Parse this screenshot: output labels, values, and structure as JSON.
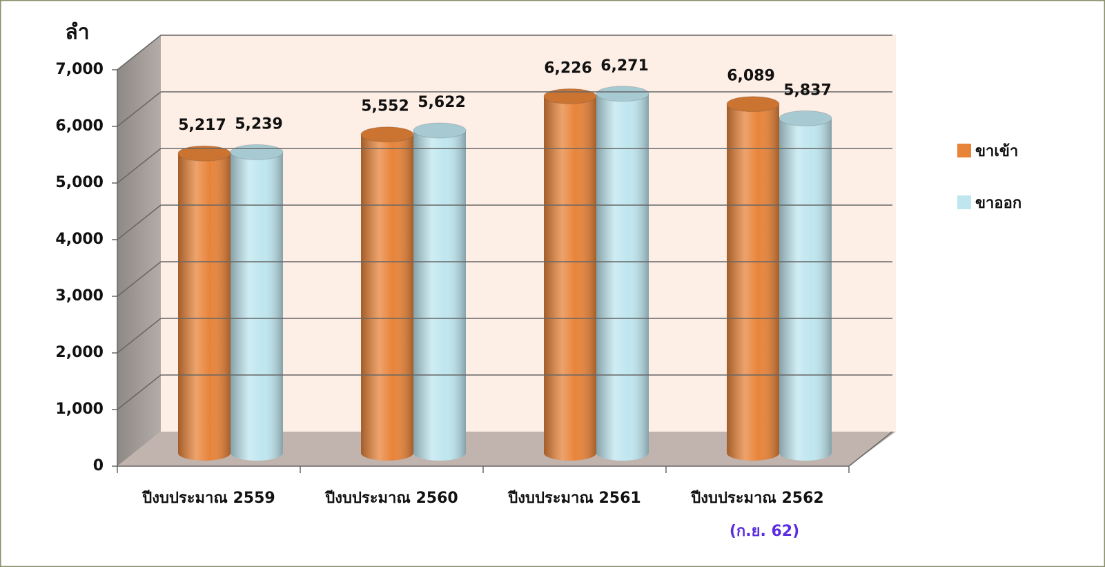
{
  "chart_data": {
    "type": "bar3d",
    "y_label": "ลำ",
    "categories": [
      "ปีงบประมาณ 2559",
      "ปีงบประมาณ 2560",
      "ปีงบประมาณ 2561",
      "ปีงบประมาณ 2562"
    ],
    "annotation": "(ก.ย. 62)",
    "series": [
      {
        "name": "ขาเข้า",
        "color": "#e8843a",
        "values": [
          5217,
          5552,
          6226,
          6089
        ],
        "value_labels": [
          "5,217",
          "5,552",
          "6,226",
          "6,089"
        ]
      },
      {
        "name": "ขาออก",
        "color": "#bfe6ef",
        "values": [
          5239,
          5622,
          6271,
          5837
        ],
        "value_labels": [
          "5,239",
          "5,622",
          "6,271",
          "5,837"
        ]
      }
    ],
    "ylim": [
      0,
      7000
    ],
    "yticks": [
      0,
      {
        "value": 1000,
        "label": "1,000"
      },
      {
        "value": 2000,
        "label": "2,000"
      },
      {
        "value": 3000,
        "label": "3,000"
      },
      {
        "value": 4000,
        "label": "4,000"
      },
      {
        "value": 5000,
        "label": "5,000"
      },
      {
        "value": 6000,
        "label": "6,000"
      },
      {
        "value": 7000,
        "label": "7,000"
      }
    ],
    "grid": true,
    "legend": "right"
  }
}
